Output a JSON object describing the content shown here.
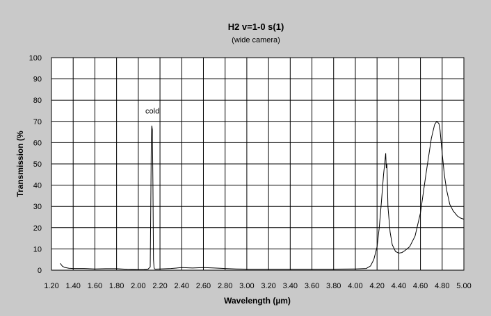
{
  "chart_data": {
    "type": "line",
    "title": "H2 v=1-0 s(1)",
    "subtitle": "(wide camera)",
    "xlabel": "Wavelength (µm)",
    "ylabel": "Transmission (%",
    "xlim": [
      1.2,
      5.0
    ],
    "ylim": [
      0,
      100
    ],
    "grid": true,
    "x_ticks": [
      "1.20",
      "1.40",
      "1.60",
      "1.80",
      "2.00",
      "2.20",
      "2.40",
      "2.60",
      "2.80",
      "3.00",
      "3.20",
      "3.40",
      "3.60",
      "3.80",
      "4.00",
      "4.20",
      "4.40",
      "4.60",
      "4.80",
      "5.00"
    ],
    "y_ticks": [
      "0",
      "10",
      "20",
      "30",
      "40",
      "50",
      "60",
      "70",
      "80",
      "90",
      "100"
    ],
    "annotations": [
      {
        "text": "cold",
        "x": 2.13,
        "y": 75
      }
    ],
    "series": [
      {
        "color": "#000000",
        "x": [
          1.28,
          1.29,
          1.3,
          1.32,
          1.36,
          1.4,
          1.5,
          1.6,
          1.7,
          1.8,
          1.9,
          2.0,
          2.05,
          2.09,
          2.11,
          2.115,
          2.12,
          2.125,
          2.13,
          2.135,
          2.14,
          2.145,
          2.15,
          2.16,
          2.2,
          2.3,
          2.4,
          2.5,
          2.6,
          2.7,
          2.8,
          2.9,
          3.0,
          3.2,
          3.4,
          3.6,
          3.8,
          4.0,
          4.1,
          4.14,
          4.17,
          4.2,
          4.22,
          4.24,
          4.26,
          4.27,
          4.28,
          4.285,
          4.29,
          4.295,
          4.3,
          4.32,
          4.34,
          4.37,
          4.4,
          4.43,
          4.46,
          4.5,
          4.55,
          4.6,
          4.65,
          4.7,
          4.73,
          4.75,
          4.77,
          4.78,
          4.8,
          4.82,
          4.84,
          4.87,
          4.9,
          4.94,
          4.97,
          5.0
        ],
        "y": [
          3.2,
          2.6,
          1.9,
          1.3,
          0.9,
          0.8,
          0.8,
          0.6,
          0.7,
          0.7,
          0.4,
          0.3,
          0.3,
          0.5,
          1.5,
          30,
          62,
          68,
          66,
          40,
          5,
          1.2,
          0.6,
          0.5,
          0.6,
          0.8,
          1.2,
          1.0,
          1.2,
          1.0,
          0.8,
          0.6,
          0.5,
          0.5,
          0.5,
          0.5,
          0.5,
          0.6,
          0.8,
          2.0,
          5.0,
          11.0,
          20.0,
          32.0,
          45.0,
          50.0,
          55.0,
          48.0,
          50.0,
          42.0,
          30.0,
          18.0,
          12.0,
          8.8,
          8.0,
          8.3,
          9.3,
          11.0,
          16.0,
          27.0,
          45.0,
          62.0,
          68.5,
          70.0,
          69.0,
          66.0,
          55.0,
          45.0,
          38.0,
          31.0,
          28.0,
          25.5,
          24.5,
          24.0
        ]
      }
    ]
  }
}
